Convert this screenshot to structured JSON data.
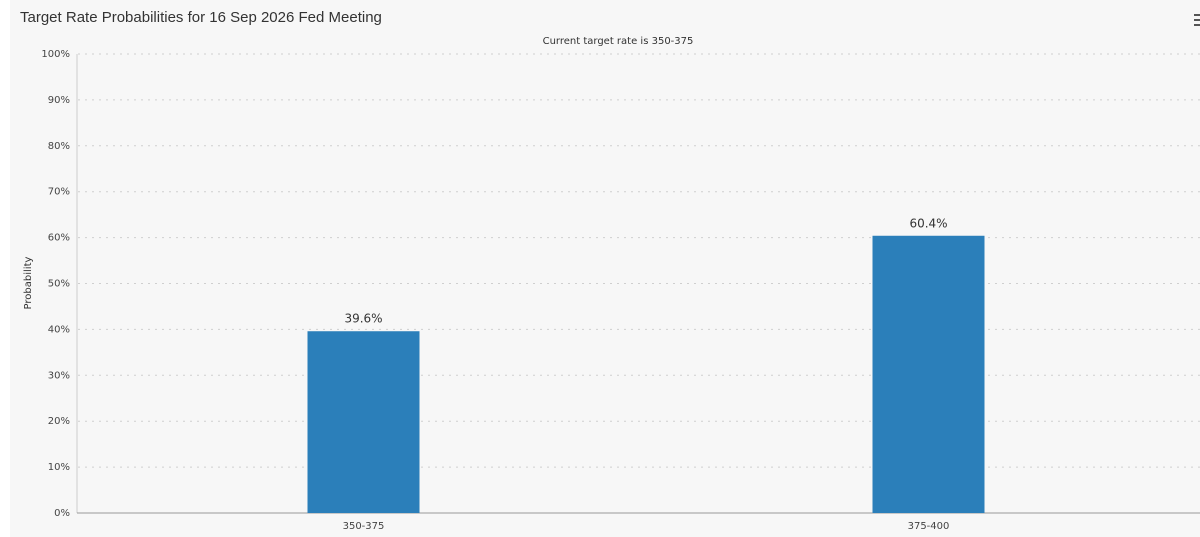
{
  "chart_data": {
    "type": "bar",
    "title": "Target Rate Probabilities for 16 Sep 2026 Fed Meeting",
    "subtitle": "Current target rate is 350-375",
    "y_label": "Probability",
    "categories": [
      "350-375",
      "375-400"
    ],
    "values": [
      39.6,
      60.4
    ],
    "value_labels": [
      "39.6%",
      "60.4%"
    ],
    "color": "#2b7fba",
    "ylim": [
      0,
      100
    ],
    "yticks": [
      {
        "value": 0,
        "label": "0%"
      },
      {
        "value": 10,
        "label": "10%"
      },
      {
        "value": 20,
        "label": "20%"
      },
      {
        "value": 30,
        "label": "30%"
      },
      {
        "value": 40,
        "label": "40%"
      },
      {
        "value": 50,
        "label": "50%"
      },
      {
        "value": 60,
        "label": "60%"
      },
      {
        "value": 70,
        "label": "70%"
      },
      {
        "value": 80,
        "label": "80%"
      },
      {
        "value": 90,
        "label": "90%"
      },
      {
        "value": 100,
        "label": "100%"
      }
    ],
    "grid": true
  }
}
